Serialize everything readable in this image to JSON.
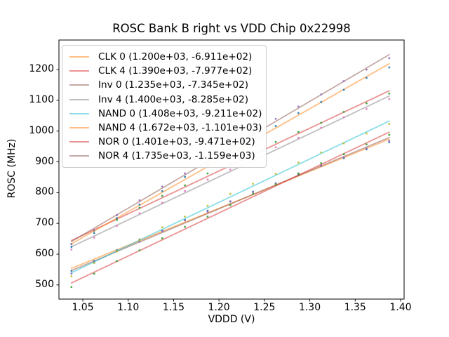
{
  "window": {
    "background": "#ffffff"
  },
  "chart_data": {
    "type": "scatter",
    "title": "ROSC Bank B right vs VDD Chip 0x22998",
    "xlabel": "VDDD (V)",
    "ylabel": "ROSC (MHz)",
    "xlim": [
      1.0237,
      1.4039
    ],
    "ylim": [
      454,
      1296
    ],
    "grid": false,
    "legend_position": "upper left",
    "legend_note": "each label shows (slope, intercept) of linear fit in MHz/V and MHz",
    "x_ticks": [
      1.05,
      1.1,
      1.15,
      1.2,
      1.25,
      1.3,
      1.35,
      1.4
    ],
    "x_tick_labels": [
      "1.05",
      "1.10",
      "1.15",
      "1.20",
      "1.25",
      "1.30",
      "1.35",
      "1.40"
    ],
    "y_ticks": [
      500,
      600,
      700,
      800,
      900,
      1000,
      1100,
      1200
    ],
    "y_tick_labels": [
      "500",
      "600",
      "700",
      "800",
      "900",
      "1000",
      "1100",
      "1200"
    ],
    "x": [
      1.0375,
      1.0625,
      1.0875,
      1.1125,
      1.1375,
      1.1625,
      1.1875,
      1.2125,
      1.2375,
      1.2625,
      1.2875,
      1.3125,
      1.3375,
      1.3625,
      1.3875
    ],
    "series": [
      {
        "name": "CLK 0",
        "label": "CLK 0 (1.200e+03, -6.911e+02)",
        "slope": 1200.0,
        "intercept": -691.1,
        "line_color": "#ff7f0e",
        "line_alpha": 0.5,
        "dot_color": "#1f77b4",
        "residuals": [
          -8,
          -6,
          -1,
          4,
          3,
          7.5,
          7.5,
          7,
          9.5,
          6.5,
          3,
          3,
          -2,
          -3,
          -10
        ]
      },
      {
        "name": "CLK 4",
        "label": "CLK 4 (1.390e+03, -7.977e+02)",
        "slope": 1390.0,
        "intercept": -797.7,
        "line_color": "#d62728",
        "line_alpha": 0.5,
        "dot_color": "#2ca02c",
        "residuals": [
          -11,
          -3,
          -3,
          2,
          6,
          5.5,
          9.5,
          8,
          5.5,
          7.5,
          5,
          0,
          1,
          -6,
          -9
        ]
      },
      {
        "name": "Inv 0",
        "label": "Inv 0 (1.235e+03, -7.345e+02)",
        "slope": 1235.0,
        "intercept": -734.5,
        "line_color": "#8c564b",
        "line_alpha": 0.5,
        "dot_color": "#9467bd",
        "residuals": [
          -10,
          -4,
          1,
          1,
          5,
          8.5,
          5.5,
          9,
          7.5,
          5.5,
          7,
          2,
          -3,
          -4,
          -11
        ]
      },
      {
        "name": "Inv 4",
        "label": "Inv 4 (1.400e+03, -8.285e+02)",
        "slope": 1400.0,
        "intercept": -828.5,
        "line_color": "#7f7f7f",
        "line_alpha": 0.5,
        "dot_color": "#e377c2",
        "residuals": [
          -9,
          -5,
          -2,
          4,
          3,
          6.5,
          8.5,
          6,
          8.5,
          8.5,
          4,
          2,
          1,
          -7,
          -10
        ]
      },
      {
        "name": "NAND 0",
        "label": "NAND 0 (1.408e+03, -9.211e+02)",
        "slope": 1408.0,
        "intercept": -921.1,
        "line_color": "#17becf",
        "line_alpha": 0.5,
        "dot_color": "#bcbd22",
        "residuals": [
          -12,
          -4,
          -1,
          1,
          7,
          6.5,
          6.5,
          10,
          7.5,
          4.5,
          6,
          4,
          -2,
          -5,
          -9
        ]
      },
      {
        "name": "NAND 4",
        "label": "NAND 4 (1.672e+03, -1.101e+03)",
        "slope": 1672.0,
        "intercept": -1101.0,
        "line_color": "#ff7f0e",
        "line_alpha": 0.5,
        "dot_color": "#1f77b4",
        "residuals": [
          -10,
          -7,
          0,
          2,
          4,
          8.5,
          7.5,
          9,
          5.5,
          6.5,
          7,
          1,
          -1,
          -4,
          -12
        ]
      },
      {
        "name": "NOR 0",
        "label": "NOR 0 (1.401e+03, -9.471e+02)",
        "slope": 1401.0,
        "intercept": -947.1,
        "line_color": "#d62728",
        "line_alpha": 0.5,
        "dot_color": "#2ca02c",
        "residuals": [
          -13,
          -5,
          1,
          1,
          5,
          7.5,
          5.5,
          8,
          9.5,
          5.5,
          5,
          4,
          -2,
          -5,
          -9
        ]
      },
      {
        "name": "NOR 4",
        "label": "NOR 4 (1.735e+03, -1.159e+03)",
        "slope": 1735.0,
        "intercept": -1159.0,
        "line_color": "#8c564b",
        "line_alpha": 0.5,
        "dot_color": "#9467bd",
        "residuals": [
          -9,
          -6,
          -1,
          4,
          5,
          4.5,
          8.5,
          8,
          6.5,
          8.5,
          5,
          1,
          1,
          -5,
          -11
        ]
      }
    ],
    "axis_color": "#000000"
  }
}
